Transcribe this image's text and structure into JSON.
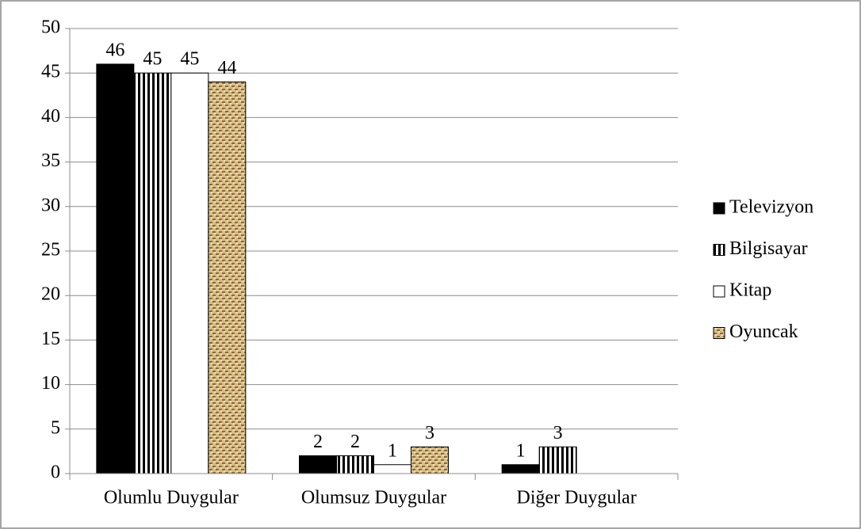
{
  "chart_data": {
    "type": "bar",
    "categories": [
      "Olumlu Duygular",
      "Olumsuz Duygular",
      "Diğer Duygular"
    ],
    "series": [
      {
        "name": "Televizyon",
        "color": "#000000",
        "pattern": "solid",
        "values": [
          46,
          2,
          1
        ]
      },
      {
        "name": "Bilgisayar",
        "color": "#000000",
        "pattern": "vertical-stripes",
        "values": [
          45,
          2,
          3
        ]
      },
      {
        "name": "Kitap",
        "color": "#ffffff",
        "pattern": "solid",
        "values": [
          45,
          1,
          null
        ]
      },
      {
        "name": "Oyuncak",
        "color": "#c9a86e",
        "pattern": "burlap",
        "values": [
          44,
          3,
          null
        ]
      }
    ],
    "ylim": [
      0,
      50
    ],
    "yticks": [
      0,
      5,
      10,
      15,
      20,
      25,
      30,
      35,
      40,
      45,
      50
    ],
    "grid": true,
    "data_labels": true,
    "legend": "right"
  }
}
